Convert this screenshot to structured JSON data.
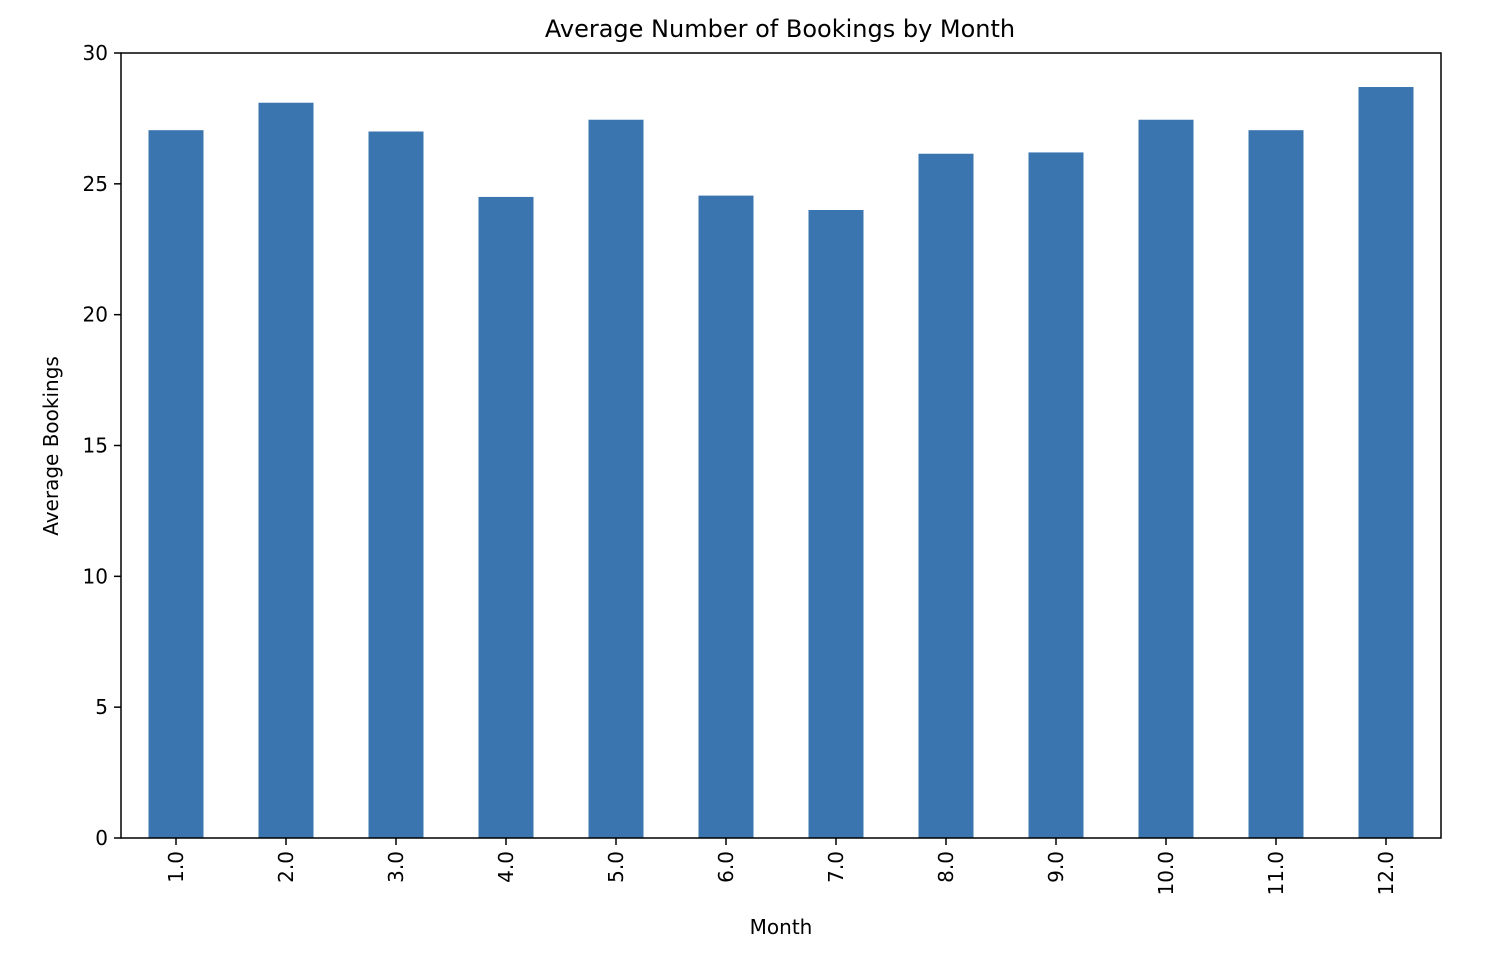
{
  "chart_data": {
    "type": "bar",
    "title": "Average Number of Bookings by Month",
    "xlabel": "Month",
    "ylabel": "Average Bookings",
    "categories": [
      "1.0",
      "2.0",
      "3.0",
      "4.0",
      "5.0",
      "6.0",
      "7.0",
      "8.0",
      "9.0",
      "10.0",
      "11.0",
      "12.0"
    ],
    "values": [
      27.05,
      28.1,
      27.0,
      24.5,
      27.45,
      24.55,
      24.0,
      26.15,
      26.2,
      27.45,
      27.05,
      28.7
    ],
    "ylim": [
      0,
      30
    ],
    "yticks": [
      0,
      5,
      10,
      15,
      20,
      25,
      30
    ],
    "x_tick_rotation": "vertical",
    "grid": false,
    "legend": "none",
    "bar_color": "#3b75af"
  }
}
